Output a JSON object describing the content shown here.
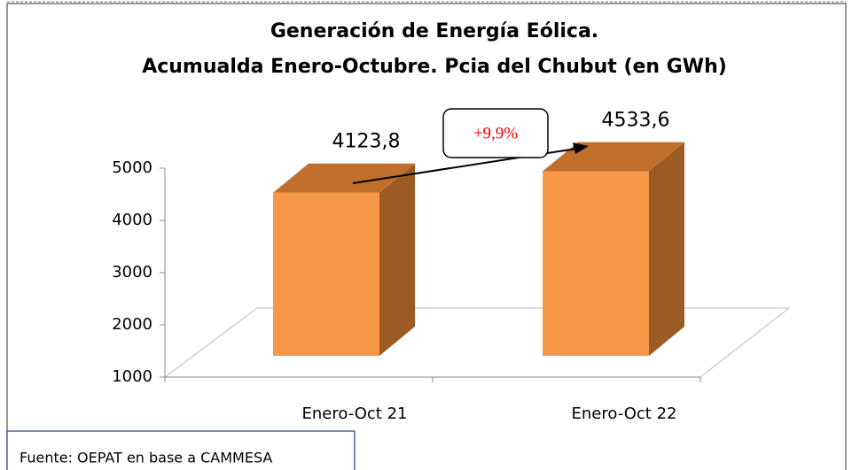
{
  "chart_data": {
    "type": "bar3d",
    "title": [
      "Generación de Energía Eólica.",
      "Acumualda Enero-Octubre. Pcia del Chubut (en GWh)"
    ],
    "categories": [
      "Enero-Oct 21",
      "Enero-Oct 22"
    ],
    "values": [
      4123.8,
      4533.6
    ],
    "value_labels": [
      "4123,8",
      "4533,6"
    ],
    "ylim": [
      1000,
      5000
    ],
    "yticks": [
      1000,
      2000,
      3000,
      4000,
      5000
    ],
    "color": "#f79646",
    "annotation": "+9,9%",
    "source": "Fuente: OEPAT en base a CAMMESA"
  }
}
